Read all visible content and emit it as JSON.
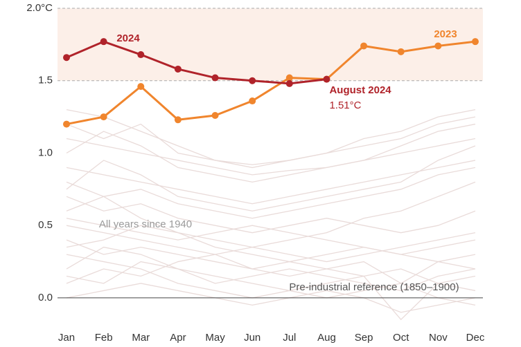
{
  "chart_data": {
    "type": "line",
    "categories": [
      "Jan",
      "Feb",
      "Mar",
      "Apr",
      "May",
      "Jun",
      "Jul",
      "Aug",
      "Sep",
      "Oct",
      "Nov",
      "Dec"
    ],
    "ylim": [
      -0.22,
      2.0
    ],
    "yticks": [
      {
        "value": 0,
        "label": "0.0"
      },
      0.5,
      {
        "value": 1,
        "label": "1.0"
      },
      1.5,
      {
        "value": 2,
        "label": "2.0°C"
      }
    ],
    "threshold_band": [
      1.5,
      2
    ],
    "threshold_color": "#fcefe8",
    "reference_line": {
      "value": 0,
      "label": "Pre-industrial reference (1850–1900)"
    },
    "background": {
      "name": "All years since 1940",
      "color": "#e9dbd9",
      "lines": [
        [
          0.3,
          0.25,
          0.2,
          0.1,
          0.05,
          0.0,
          0.05,
          0.1,
          0.15,
          0.2,
          0.1,
          0.05
        ],
        [
          0.1,
          0.2,
          0.15,
          0.25,
          0.3,
          0.2,
          0.15,
          0.2,
          0.25,
          0.1,
          0.0,
          -0.05
        ],
        [
          0.5,
          0.45,
          0.4,
          0.35,
          0.3,
          0.35,
          0.3,
          0.25,
          0.3,
          0.35,
          0.4,
          0.45
        ],
        [
          0.7,
          0.6,
          0.65,
          0.55,
          0.5,
          0.45,
          0.5,
          0.55,
          0.5,
          0.45,
          0.5,
          0.6
        ],
        [
          0.9,
          0.85,
          0.8,
          0.75,
          0.7,
          0.65,
          0.7,
          0.75,
          0.8,
          0.85,
          0.9,
          0.95
        ],
        [
          1.1,
          1.05,
          1.0,
          0.95,
          0.9,
          0.85,
          0.88,
          0.9,
          0.95,
          1.0,
          1.05,
          1.1
        ],
        [
          1.3,
          1.25,
          1.15,
          1.05,
          0.95,
          0.92,
          0.95,
          1.0,
          1.05,
          1.1,
          1.2,
          1.25
        ],
        [
          0.0,
          0.05,
          0.1,
          0.05,
          0.0,
          -0.05,
          0.0,
          0.05,
          0.0,
          -0.1,
          -0.05,
          0.0
        ],
        [
          0.2,
          0.35,
          0.3,
          0.2,
          0.15,
          0.1,
          0.05,
          0.0,
          0.05,
          0.1,
          0.25,
          0.3
        ],
        [
          0.6,
          0.7,
          0.55,
          0.45,
          0.4,
          0.35,
          0.4,
          0.45,
          0.55,
          0.6,
          0.7,
          0.8
        ],
        [
          0.4,
          0.3,
          0.35,
          0.3,
          0.25,
          0.2,
          0.25,
          0.3,
          0.35,
          0.3,
          0.25,
          0.2
        ],
        [
          1.0,
          1.15,
          1.05,
          0.9,
          0.85,
          0.8,
          0.85,
          0.9,
          0.95,
          1.05,
          1.15,
          1.2
        ],
        [
          0.8,
          0.7,
          0.75,
          0.65,
          0.6,
          0.55,
          0.6,
          0.65,
          0.7,
          0.75,
          0.85,
          0.9
        ],
        [
          0.15,
          0.1,
          0.25,
          0.2,
          0.1,
          0.15,
          0.2,
          0.15,
          0.1,
          0.05,
          0.15,
          0.2
        ],
        [
          1.2,
          1.1,
          1.2,
          1.0,
          0.95,
          0.9,
          0.95,
          1.0,
          1.1,
          1.15,
          1.25,
          1.3
        ],
        [
          0.55,
          0.5,
          0.45,
          0.4,
          0.45,
          0.5,
          0.45,
          0.4,
          0.35,
          0.3,
          0.35,
          0.4
        ],
        [
          0.35,
          0.4,
          0.5,
          0.45,
          0.35,
          0.3,
          0.25,
          0.2,
          0.15,
          -0.15,
          0.1,
          0.15
        ],
        [
          0.75,
          0.95,
          0.85,
          0.7,
          0.65,
          0.6,
          0.65,
          0.7,
          0.75,
          0.8,
          0.95,
          1.05
        ]
      ]
    },
    "series": [
      {
        "name": "2024",
        "color": "#b0232a",
        "values": [
          1.66,
          1.77,
          1.68,
          1.58,
          1.52,
          1.5,
          1.48,
          1.51,
          null,
          null,
          null,
          null
        ],
        "value_labels": [
          null,
          null,
          null,
          null,
          null,
          null,
          null,
          "1.51°C",
          null,
          null,
          null,
          null
        ],
        "annotation": "August 2024"
      },
      {
        "name": "2023",
        "color": "#f0852d",
        "values": [
          1.2,
          1.25,
          1.46,
          1.23,
          1.26,
          1.36,
          1.52,
          1.51,
          1.74,
          1.7,
          1.74,
          1.77
        ]
      }
    ]
  }
}
